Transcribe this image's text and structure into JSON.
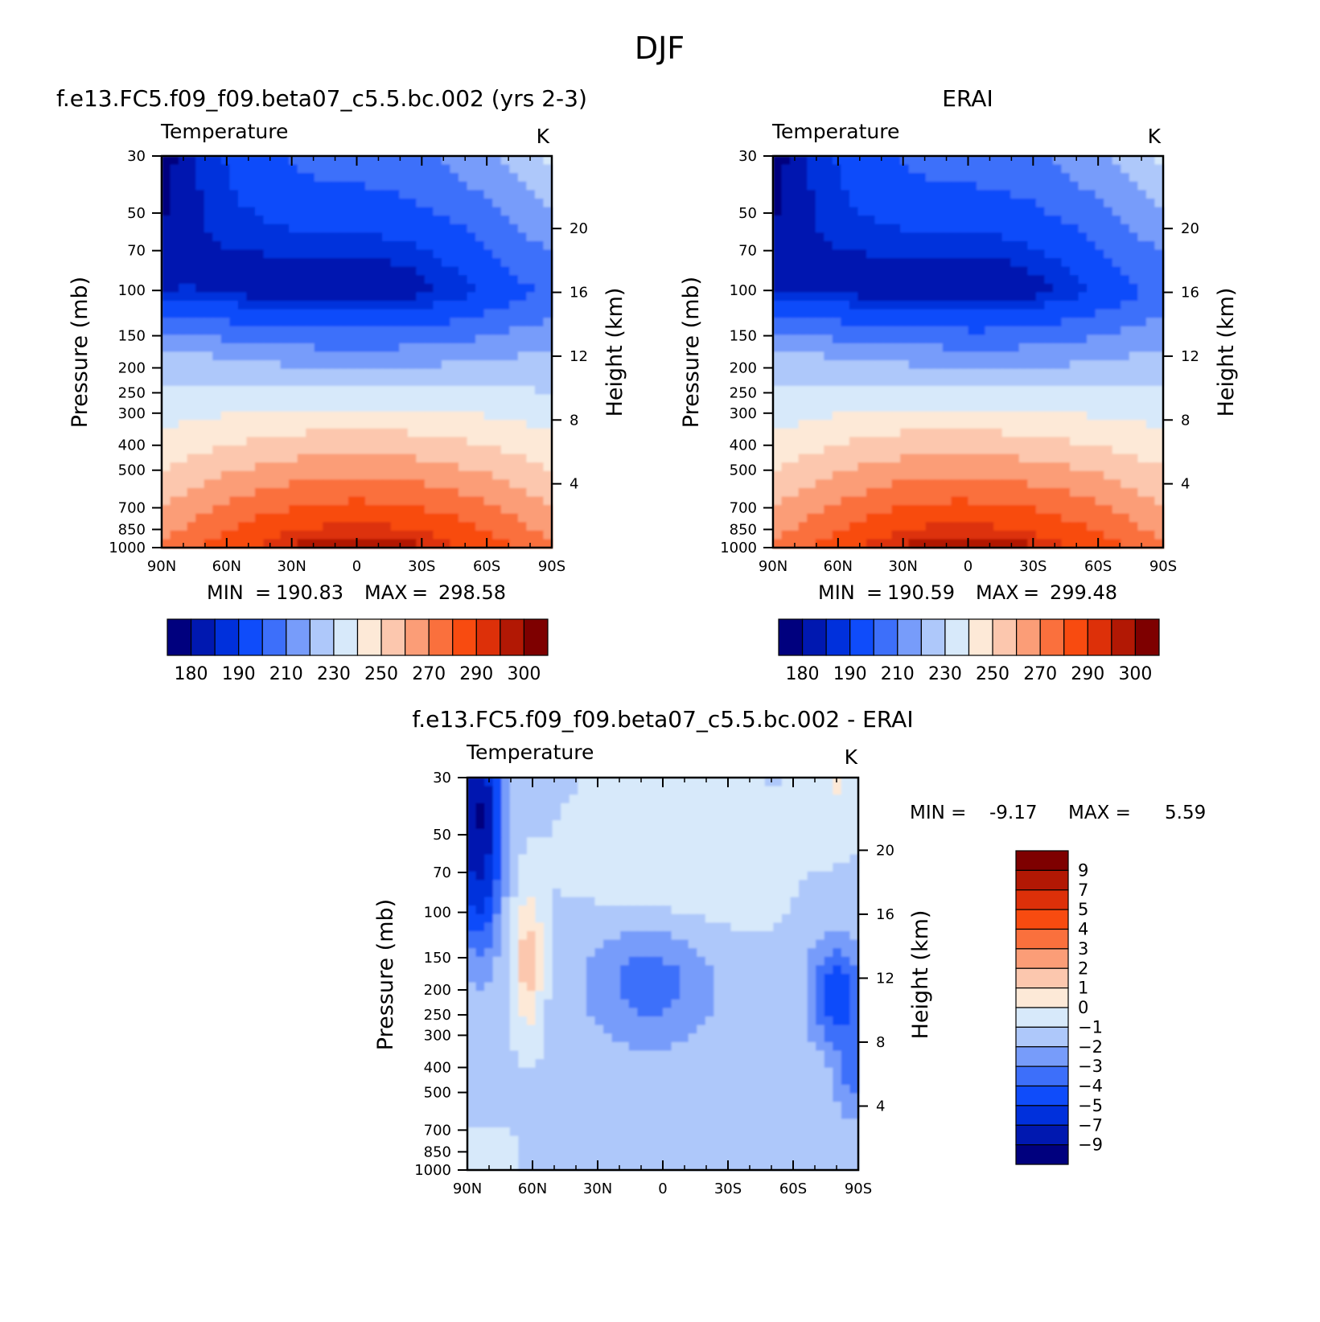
{
  "page": {
    "title": "DJF"
  },
  "colors": {
    "abs_palette": [
      "#00007e",
      "#0018b0",
      "#0030dc",
      "#0f4cfa",
      "#3d6ffa",
      "#779cfa",
      "#aec8fa",
      "#d7e9fa",
      "#fde9d7",
      "#fcc7ae",
      "#fb9d77",
      "#fa703d",
      "#f84b10",
      "#dd3009",
      "#b21804",
      "#7e0000"
    ],
    "diff_palette": [
      "#00007e",
      "#0018b0",
      "#0030dc",
      "#0f4cfa",
      "#3d6ffa",
      "#779cfa",
      "#aec8fa",
      "#d7e9fa",
      "#fde9d7",
      "#fcc7ae",
      "#fb9d77",
      "#fa703d",
      "#f84b10",
      "#dd3009",
      "#b21804",
      "#7e0000"
    ]
  },
  "chart_data": [
    {
      "id": "model",
      "type": "heatmap",
      "title": "f.e13.FC5.f09_f09.beta07_c5.5.bc.002 (yrs 2-3)",
      "subtitle_left": "Temperature",
      "subtitle_right": "K",
      "xlabel": "",
      "ylabel": "Pressure (mb)",
      "ylabel_right": "Height (km)",
      "x": [
        "90N",
        "60N",
        "30N",
        "0",
        "30S",
        "60S",
        "90S"
      ],
      "x_values": [
        90,
        60,
        30,
        0,
        -30,
        -60,
        -90
      ],
      "xlim": [
        90,
        -90
      ],
      "y_ticks": [
        30,
        50,
        70,
        100,
        150,
        200,
        250,
        300,
        400,
        500,
        700,
        850,
        1000
      ],
      "ylim": [
        30,
        1000
      ],
      "y_scale": "log",
      "height_ticks": [
        4,
        8,
        12,
        16,
        20
      ],
      "stats": {
        "min_label": "MIN",
        "min": "190.83",
        "max_label": "MAX",
        "max": "298.58"
      },
      "colorbar": {
        "orientation": "horizontal",
        "labels": [
          "180",
          "190",
          "210",
          "230",
          "250",
          "270",
          "290",
          "300"
        ]
      }
    },
    {
      "id": "obs",
      "type": "heatmap",
      "title": "ERAI",
      "subtitle_left": "Temperature",
      "subtitle_right": "K",
      "xlabel": "",
      "ylabel": "Pressure (mb)",
      "ylabel_right": "Height (km)",
      "x": [
        "90N",
        "60N",
        "30N",
        "0",
        "30S",
        "60S",
        "90S"
      ],
      "x_values": [
        90,
        60,
        30,
        0,
        -30,
        -60,
        -90
      ],
      "xlim": [
        90,
        -90
      ],
      "y_ticks": [
        30,
        50,
        70,
        100,
        150,
        200,
        250,
        300,
        400,
        500,
        700,
        850,
        1000
      ],
      "ylim": [
        30,
        1000
      ],
      "y_scale": "log",
      "height_ticks": [
        4,
        8,
        12,
        16,
        20
      ],
      "stats": {
        "min_label": "MIN",
        "min": "190.59",
        "max_label": "MAX",
        "max": "299.48"
      },
      "colorbar": {
        "orientation": "horizontal",
        "labels": [
          "180",
          "190",
          "210",
          "230",
          "250",
          "270",
          "290",
          "300"
        ]
      }
    },
    {
      "id": "diff",
      "type": "heatmap",
      "title": "f.e13.FC5.f09_f09.beta07_c5.5.bc.002 - ERAI",
      "subtitle_left": "Temperature",
      "subtitle_right": "K",
      "xlabel": "",
      "ylabel": "Pressure (mb)",
      "ylabel_right": "Height (km)",
      "x": [
        "90N",
        "60N",
        "30N",
        "0",
        "30S",
        "60S",
        "90S"
      ],
      "x_values": [
        90,
        60,
        30,
        0,
        -30,
        -60,
        -90
      ],
      "xlim": [
        90,
        -90
      ],
      "y_ticks": [
        30,
        50,
        70,
        100,
        150,
        200,
        250,
        300,
        400,
        500,
        700,
        850,
        1000
      ],
      "ylim": [
        30,
        1000
      ],
      "y_scale": "log",
      "height_ticks": [
        4,
        8,
        12,
        16,
        20
      ],
      "stats": {
        "min_label": "MIN =",
        "min": "-9.17",
        "max_label": "MAX =",
        "max": "5.59"
      },
      "colorbar": {
        "orientation": "vertical",
        "labels": [
          "9",
          "7",
          "5",
          "4",
          "3",
          "2",
          "1",
          "0",
          "-1",
          "-2",
          "-3",
          "-4",
          "-5",
          "-7",
          "-9"
        ]
      }
    }
  ]
}
